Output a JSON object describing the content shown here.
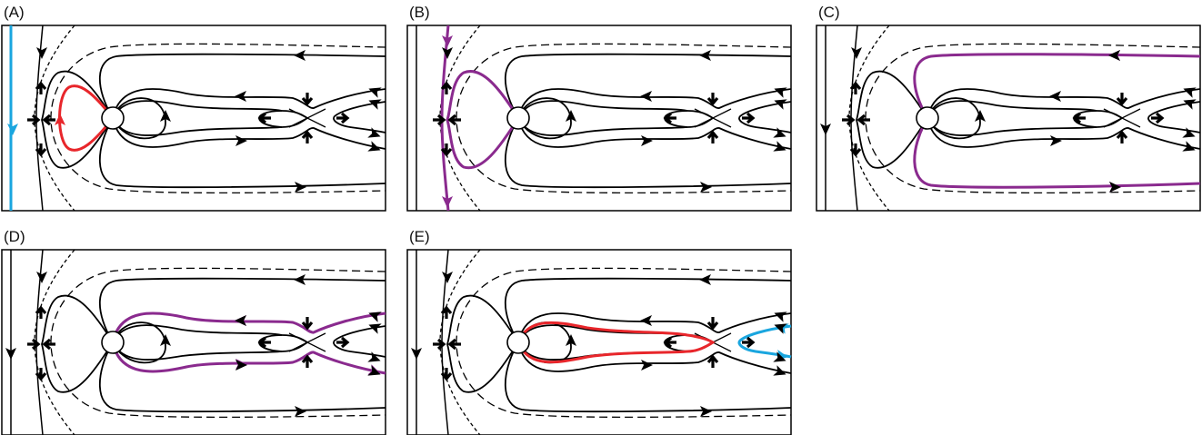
{
  "panels": [
    {
      "label": "(A)",
      "highlights": [
        "blue-edge-line",
        "red-planet-loop"
      ]
    },
    {
      "label": "(B)",
      "highlights": [
        "purple-separatrix"
      ]
    },
    {
      "label": "(C)",
      "highlights": [
        "purple-outer-lines"
      ]
    },
    {
      "label": "(D)",
      "highlights": [
        "purple-middle-lines"
      ]
    },
    {
      "label": "(E)",
      "highlights": [
        "red-inner-loop",
        "blue-right-loop"
      ]
    }
  ],
  "colors": {
    "line": "#000000",
    "red": "#e8262b",
    "blue": "#1aa6df",
    "purple": "#8a2a8e"
  }
}
